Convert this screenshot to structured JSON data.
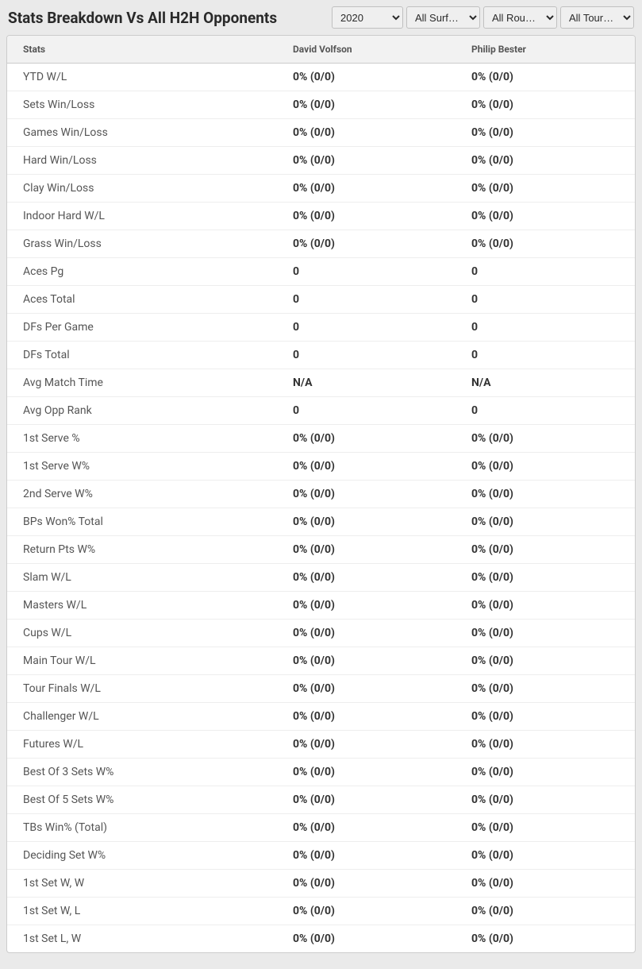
{
  "header": {
    "title": "Stats Breakdown Vs All H2H Opponents"
  },
  "filters": {
    "year": {
      "selected": "2020"
    },
    "surface": {
      "selected": "All Surf…"
    },
    "round": {
      "selected": "All Rou…"
    },
    "tour": {
      "selected": "All Tour…"
    }
  },
  "table": {
    "columns": {
      "stats": "Stats",
      "player1": "David Volfson",
      "player2": "Philip Bester"
    },
    "rows": [
      {
        "label": "YTD W/L",
        "p1": "0% (0/0)",
        "p2": "0% (0/0)"
      },
      {
        "label": "Sets Win/Loss",
        "p1": "0% (0/0)",
        "p2": "0% (0/0)"
      },
      {
        "label": "Games Win/Loss",
        "p1": "0% (0/0)",
        "p2": "0% (0/0)"
      },
      {
        "label": "Hard Win/Loss",
        "p1": "0% (0/0)",
        "p2": "0% (0/0)"
      },
      {
        "label": "Clay Win/Loss",
        "p1": "0% (0/0)",
        "p2": "0% (0/0)"
      },
      {
        "label": "Indoor Hard W/L",
        "p1": "0% (0/0)",
        "p2": "0% (0/0)"
      },
      {
        "label": "Grass Win/Loss",
        "p1": "0% (0/0)",
        "p2": "0% (0/0)"
      },
      {
        "label": "Aces Pg",
        "p1": "0",
        "p2": "0"
      },
      {
        "label": "Aces Total",
        "p1": "0",
        "p2": "0"
      },
      {
        "label": "DFs Per Game",
        "p1": "0",
        "p2": "0"
      },
      {
        "label": "DFs Total",
        "p1": "0",
        "p2": "0"
      },
      {
        "label": "Avg Match Time",
        "p1": "N/A",
        "p2": "N/A"
      },
      {
        "label": "Avg Opp Rank",
        "p1": "0",
        "p2": "0"
      },
      {
        "label": "1st Serve %",
        "p1": "0% (0/0)",
        "p2": "0% (0/0)"
      },
      {
        "label": "1st Serve W%",
        "p1": "0% (0/0)",
        "p2": "0% (0/0)"
      },
      {
        "label": "2nd Serve W%",
        "p1": "0% (0/0)",
        "p2": "0% (0/0)"
      },
      {
        "label": "BPs Won% Total",
        "p1": "0% (0/0)",
        "p2": "0% (0/0)"
      },
      {
        "label": "Return Pts W%",
        "p1": "0% (0/0)",
        "p2": "0% (0/0)"
      },
      {
        "label": "Slam W/L",
        "p1": "0% (0/0)",
        "p2": "0% (0/0)"
      },
      {
        "label": "Masters W/L",
        "p1": "0% (0/0)",
        "p2": "0% (0/0)"
      },
      {
        "label": "Cups W/L",
        "p1": "0% (0/0)",
        "p2": "0% (0/0)"
      },
      {
        "label": "Main Tour W/L",
        "p1": "0% (0/0)",
        "p2": "0% (0/0)"
      },
      {
        "label": "Tour Finals W/L",
        "p1": "0% (0/0)",
        "p2": "0% (0/0)"
      },
      {
        "label": "Challenger W/L",
        "p1": "0% (0/0)",
        "p2": "0% (0/0)"
      },
      {
        "label": "Futures W/L",
        "p1": "0% (0/0)",
        "p2": "0% (0/0)"
      },
      {
        "label": "Best Of 3 Sets W%",
        "p1": "0% (0/0)",
        "p2": "0% (0/0)"
      },
      {
        "label": "Best Of 5 Sets W%",
        "p1": "0% (0/0)",
        "p2": "0% (0/0)"
      },
      {
        "label": "TBs Win% (Total)",
        "p1": "0% (0/0)",
        "p2": "0% (0/0)"
      },
      {
        "label": "Deciding Set W%",
        "p1": "0% (0/0)",
        "p2": "0% (0/0)"
      },
      {
        "label": "1st Set W, W",
        "p1": "0% (0/0)",
        "p2": "0% (0/0)"
      },
      {
        "label": "1st Set W, L",
        "p1": "0% (0/0)",
        "p2": "0% (0/0)"
      },
      {
        "label": "1st Set L, W",
        "p1": "0% (0/0)",
        "p2": "0% (0/0)"
      }
    ]
  }
}
